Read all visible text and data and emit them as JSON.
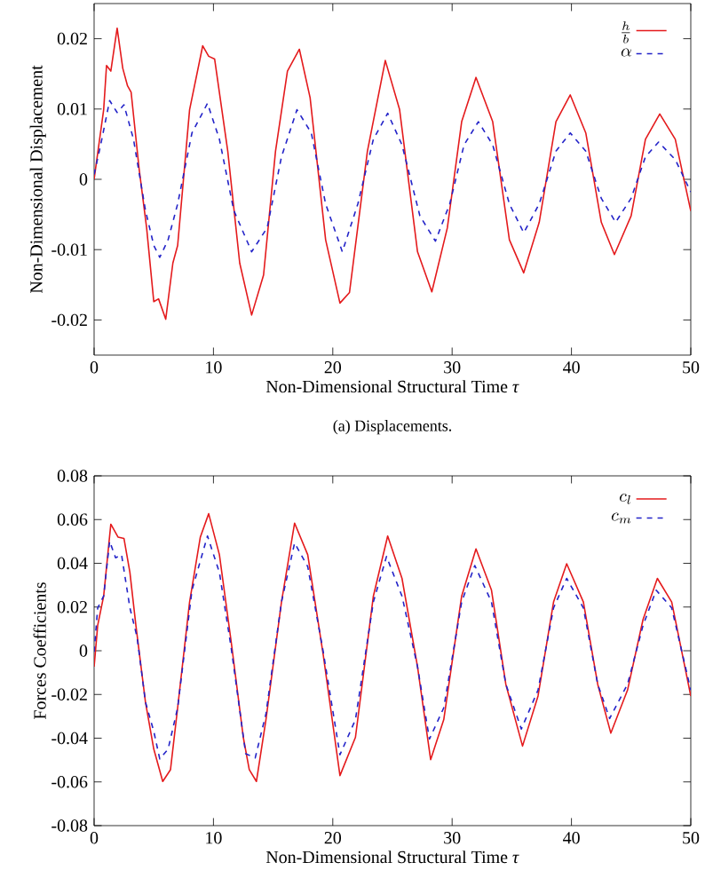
{
  "chart_data": [
    {
      "type": "line",
      "xlabel": "Non-Dimensional Structural Time *τ*",
      "ylabel": "Non-Dimensional Displacement",
      "xlim": [
        0,
        50
      ],
      "ylim": [
        -0.025,
        0.025
      ],
      "xticks": [
        0,
        10,
        20,
        30,
        40,
        50
      ],
      "yticks": [
        -0.02,
        -0.01,
        0,
        0.01,
        0.02
      ],
      "legend": "top right",
      "grid": false,
      "marker": "none",
      "annotations": [
        "(a) Displacements."
      ],
      "series": [
        {
          "name": "\\frac{h}{b}",
          "color": "#e41a1c",
          "line_style": "solid",
          "x": [
            0,
            0.8,
            1.04,
            1.4,
            1.93,
            2.4,
            2.8,
            3.1,
            3.77,
            4.4,
            5.0,
            5.4,
            6.0,
            6.6,
            7.0,
            8.0,
            9.1,
            9.6,
            10.1,
            11.2,
            12.2,
            13.2,
            14.2,
            15.2,
            16.2,
            17.2,
            18.1,
            19.4,
            20.6,
            21.4,
            22.9,
            24.4,
            25.6,
            27.1,
            28.3,
            29.6,
            30.8,
            32.0,
            33.4,
            34.8,
            36.0,
            37.3,
            38.7,
            39.9,
            41.2,
            42.5,
            43.6,
            45.0,
            46.2,
            47.4,
            48.7,
            50
          ],
          "values": [
            0,
            0.0099,
            0.0162,
            0.0154,
            0.0215,
            0.0158,
            0.0133,
            0.0124,
            0.0015,
            -0.0069,
            -0.0174,
            -0.017,
            -0.0199,
            -0.0119,
            -0.0094,
            0.0099,
            0.019,
            0.0175,
            0.0171,
            0.004,
            -0.0119,
            -0.0193,
            -0.0136,
            0.004,
            0.0154,
            0.0185,
            0.0116,
            -0.0086,
            -0.0176,
            -0.0161,
            0.004,
            0.0169,
            0.0099,
            -0.0103,
            -0.016,
            -0.0069,
            0.0082,
            0.0145,
            0.0082,
            -0.0086,
            -0.0133,
            -0.0061,
            0.0082,
            0.012,
            0.0066,
            -0.0061,
            -0.0107,
            -0.0052,
            0.0057,
            0.0093,
            0.0057,
            -0.0045
          ]
        },
        {
          "name": "\\alpha",
          "color": "#2323c8",
          "line_style": "dashed",
          "x": [
            0,
            0.55,
            1.3,
            1.93,
            2.5,
            3.3,
            4.3,
            5.0,
            5.5,
            6.2,
            7.0,
            8.2,
            9.5,
            10.5,
            11.7,
            13.2,
            14.5,
            15.7,
            17.0,
            18.2,
            19.4,
            20.8,
            22.1,
            23.4,
            24.6,
            25.8,
            27.3,
            28.6,
            29.8,
            31.0,
            32.2,
            33.4,
            34.8,
            36.0,
            37.3,
            38.7,
            39.9,
            41.2,
            42.5,
            43.7,
            45.0,
            46.2,
            47.3,
            48.7,
            50
          ],
          "values": [
            0.0007,
            0.0049,
            0.0112,
            0.0095,
            0.0106,
            0.0057,
            -0.0044,
            -0.0094,
            -0.0111,
            -0.0086,
            -0.0035,
            0.0066,
            0.0108,
            0.0057,
            -0.0044,
            -0.0103,
            -0.0069,
            0.0032,
            0.0099,
            0.0066,
            -0.0035,
            -0.0103,
            -0.0035,
            0.0057,
            0.0094,
            0.0049,
            -0.0052,
            -0.0088,
            -0.0035,
            0.0049,
            0.0082,
            0.0049,
            -0.0035,
            -0.0076,
            -0.0035,
            0.004,
            0.0066,
            0.004,
            -0.0027,
            -0.0061,
            -0.0027,
            0.0032,
            0.0053,
            0.0028,
            -0.0018
          ]
        }
      ]
    },
    {
      "type": "line",
      "xlabel": "Non-Dimensional Structural Time *τ*",
      "ylabel": "Forces Coefficients",
      "xlim": [
        0,
        50
      ],
      "ylim": [
        -0.08,
        0.08
      ],
      "xticks": [
        0,
        10,
        20,
        30,
        40,
        50
      ],
      "yticks": [
        -0.08,
        -0.06,
        -0.04,
        -0.02,
        0,
        0.02,
        0.04,
        0.06,
        0.08
      ],
      "legend": "top right",
      "grid": false,
      "marker": "none",
      "series": [
        {
          "name": "c_l",
          "color": "#e41a1c",
          "line_style": "solid",
          "x": [
            0,
            0.3,
            0.8,
            1.4,
            2.0,
            2.5,
            3.0,
            3.5,
            4.3,
            5.0,
            5.75,
            6.4,
            7.0,
            8.0,
            8.9,
            9.6,
            10.5,
            11.5,
            12.5,
            13.0,
            13.6,
            14.4,
            15.7,
            16.8,
            17.9,
            19.2,
            20.6,
            21.9,
            23.4,
            24.6,
            25.8,
            27.1,
            28.2,
            29.3,
            30.8,
            32.0,
            33.3,
            34.5,
            35.9,
            37.2,
            38.5,
            39.6,
            41.0,
            42.2,
            43.3,
            44.7,
            46.0,
            47.2,
            48.4,
            50
          ],
          "values": [
            -0.0073,
            0.0116,
            0.025,
            0.0579,
            0.052,
            0.0514,
            0.0358,
            0.0116,
            -0.0234,
            -0.045,
            -0.0598,
            -0.0544,
            -0.0261,
            0.0223,
            0.052,
            0.0627,
            0.0439,
            0.0035,
            -0.0396,
            -0.0544,
            -0.0598,
            -0.0315,
            0.0223,
            0.0584,
            0.0439,
            -0.0019,
            -0.0571,
            -0.0396,
            0.025,
            0.0525,
            0.0331,
            -0.0073,
            -0.0498,
            -0.0315,
            0.025,
            0.0466,
            0.0277,
            -0.0153,
            -0.0436,
            -0.0207,
            0.0223,
            0.0398,
            0.0223,
            -0.0153,
            -0.0377,
            -0.018,
            0.0143,
            0.0331,
            0.0223,
            -0.0207
          ]
        },
        {
          "name": "c_m",
          "color": "#2323c8",
          "line_style": "dashed",
          "x": [
            0,
            0.3,
            0.8,
            1.3,
            1.8,
            2.3,
            3.0,
            3.6,
            4.3,
            5.0,
            5.5,
            6.2,
            7.0,
            8.2,
            9.5,
            10.5,
            11.5,
            12.7,
            13.5,
            14.4,
            15.7,
            16.8,
            17.9,
            19.2,
            20.6,
            21.9,
            23.4,
            24.5,
            25.8,
            27.1,
            28.1,
            29.3,
            30.8,
            31.9,
            33.3,
            34.5,
            35.8,
            37.2,
            38.5,
            39.6,
            41.0,
            42.2,
            43.2,
            44.7,
            46.0,
            47.1,
            48.4,
            50
          ],
          "values": [
            -0.0005,
            0.0196,
            0.025,
            0.0501,
            0.0425,
            0.0439,
            0.0196,
            0.0062,
            -0.0234,
            -0.0369,
            -0.0495,
            -0.045,
            -0.0261,
            0.0277,
            0.0525,
            0.0358,
            0.0008,
            -0.0471,
            -0.049,
            -0.0288,
            0.0223,
            0.0493,
            0.0385,
            -0.0005,
            -0.0476,
            -0.0315,
            0.0223,
            0.0431,
            0.025,
            -0.0073,
            -0.0404,
            -0.0261,
            0.0223,
            0.039,
            0.0223,
            -0.0153,
            -0.0358,
            -0.018,
            0.0196,
            0.0331,
            0.0196,
            -0.0153,
            -0.031,
            -0.0153,
            0.0116,
            0.0277,
            0.0196,
            -0.018
          ]
        }
      ]
    }
  ]
}
